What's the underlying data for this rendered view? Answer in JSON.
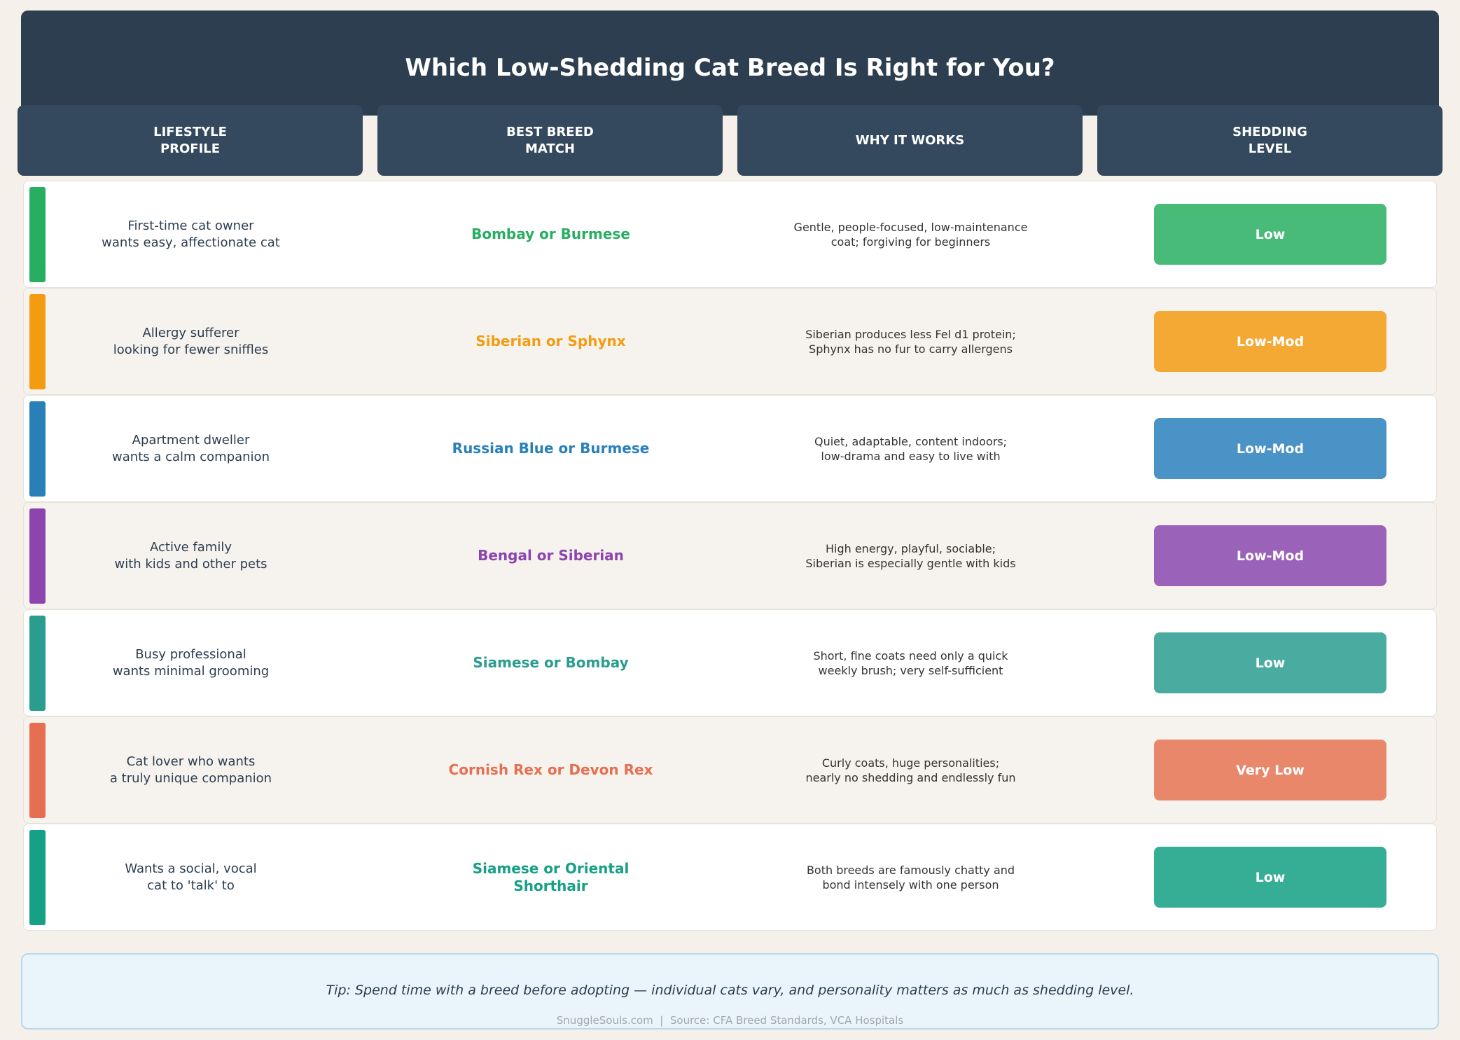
{
  "title": "Which Low-Shedding Cat Breed Is Right for You?",
  "table": {
    "headers": [
      "LIFESTYLE\nPROFILE",
      "BEST BREED\nMATCH",
      "WHY IT WORKS",
      "SHEDDING\nLEVEL"
    ],
    "rows": [
      {
        "profile": "First-time cat owner\nwants easy, affectionate cat",
        "breed": "Bombay or Burmese",
        "why": "Gentle, people-focused, low-maintenance\ncoat; forgiving for beginners",
        "shedding": "Low",
        "color": "#27ae60",
        "badge_color": "#48bb78"
      },
      {
        "profile": "Allergy sufferer\nlooking for fewer sniffles",
        "breed": "Siberian or Sphynx",
        "why": "Siberian produces less Fel d1 protein;\nSphynx has no fur to carry allergens",
        "shedding": "Low-Mod",
        "color": "#f39c12",
        "badge_color": "#f4a935"
      },
      {
        "profile": "Apartment dweller\nwants a calm companion",
        "breed": "Russian Blue or Burmese",
        "why": "Quiet, adaptable, content indoors;\nlow-drama and easy to live with",
        "shedding": "Low-Mod",
        "color": "#2980b9",
        "badge_color": "#4a93c6"
      },
      {
        "profile": "Active family\nwith kids and other pets",
        "breed": "Bengal or Siberian",
        "why": "High energy, playful, sociable;\nSiberian is especially gentle with kids",
        "shedding": "Low-Mod",
        "color": "#8e44ad",
        "badge_color": "#9b62b9"
      },
      {
        "profile": "Busy professional\nwants minimal grooming",
        "breed": "Siamese or Bombay",
        "why": "Short, fine coats need only a quick\nweekly brush; very self-sufficient",
        "shedding": "Low",
        "color": "#2a9d8f",
        "badge_color": "#4aaca0"
      },
      {
        "profile": "Cat lover who wants\na truly unique companion",
        "breed": "Cornish Rex or Devon Rex",
        "why": "Curly coats, huge personalities;\nnearly no shedding and endlessly fun",
        "shedding": "Very Low",
        "color": "#e76f51",
        "badge_color": "#e9876a"
      },
      {
        "profile": "Wants a social, vocal\ncat to 'talk' to",
        "breed": "Siamese or Oriental\nShorthair",
        "why": "Both breeds are famously chatty and\nbond intensely with one person",
        "shedding": "Low",
        "color": "#16a085",
        "badge_color": "#36ad95"
      }
    ]
  },
  "footer": {
    "tip": "Tip: Spend time with a breed before adopting — individual cats vary, and personality matters as much as shedding level.",
    "credit": "SnuggleSouls.com  |  Source: CFA Breed Standards, VCA Hospitals"
  }
}
